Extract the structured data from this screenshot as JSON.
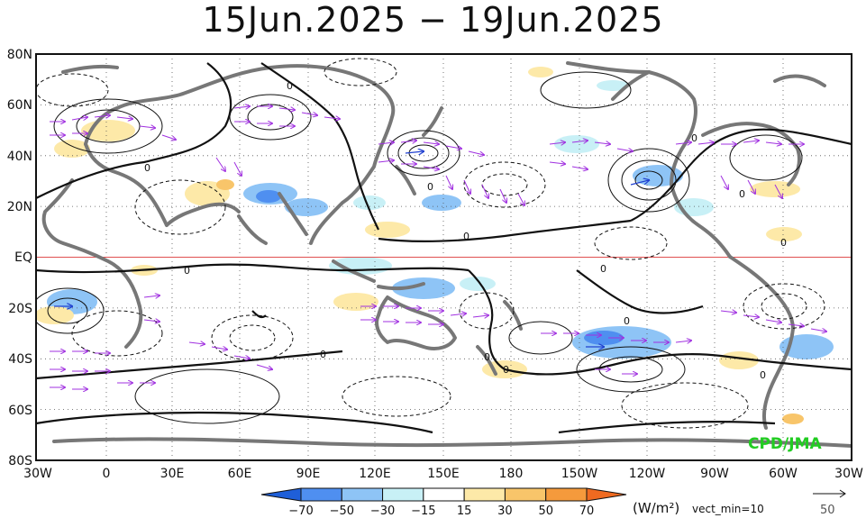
{
  "title": "15Jun.2025 − 19Jun.2025",
  "watermark": "CPD/JMA",
  "lat_labels": [
    "80N",
    "60N",
    "40N",
    "20N",
    "EQ",
    "20S",
    "40S",
    "60S",
    "80S"
  ],
  "lon_labels": [
    "30W",
    "0",
    "30E",
    "60E",
    "90E",
    "120E",
    "150E",
    "180",
    "150W",
    "120W",
    "90W",
    "60W",
    "30W"
  ],
  "contour_zero_label": "0",
  "colorbar": {
    "labels": [
      "−70",
      "−50",
      "−30",
      "−15",
      "15",
      "30",
      "50",
      "70"
    ],
    "unit": "(W/m²)",
    "colors": [
      "#1f5fd8",
      "#4f8ff0",
      "#8ec4f6",
      "#c8f0f6",
      "#ffffff",
      "#fde9a8",
      "#f8c56a",
      "#f59a3c",
      "#ef6a20"
    ]
  },
  "vector_note": "vect_min=10",
  "reference_vector_value": "50",
  "colors": {
    "equator_line": "#e05050",
    "coastline": "#777777",
    "contour": "#111111",
    "vectors": "#a030e0",
    "watermark": "#22cc22"
  }
}
